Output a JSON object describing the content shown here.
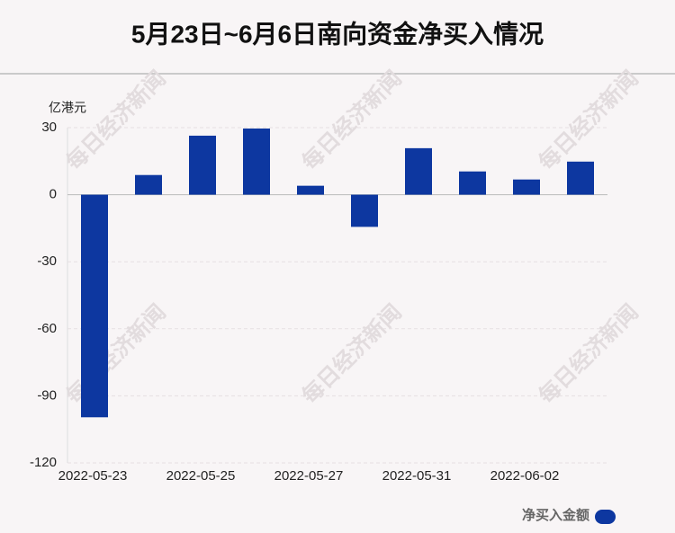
{
  "chart_data": {
    "type": "bar",
    "title": "5月23日~6月6日南向资金净买入情况",
    "y_label": "亿港元",
    "watermark": "每日经济新闻",
    "categories": [
      "2022-05-23",
      null,
      "2022-05-25",
      null,
      "2022-05-27",
      null,
      "2022-05-31",
      null,
      "2022-06-02",
      null
    ],
    "series": [
      {
        "name": "净买入金额",
        "color": "#0d37a0",
        "values": [
          -99.6,
          8.8,
          26.4,
          29.6,
          4.0,
          -14.4,
          20.8,
          10.4,
          6.8,
          14.8
        ]
      }
    ],
    "ylim": [
      -120,
      30
    ],
    "yticks": [
      30,
      0,
      -30,
      -60,
      -90,
      -120
    ],
    "grid": true
  }
}
